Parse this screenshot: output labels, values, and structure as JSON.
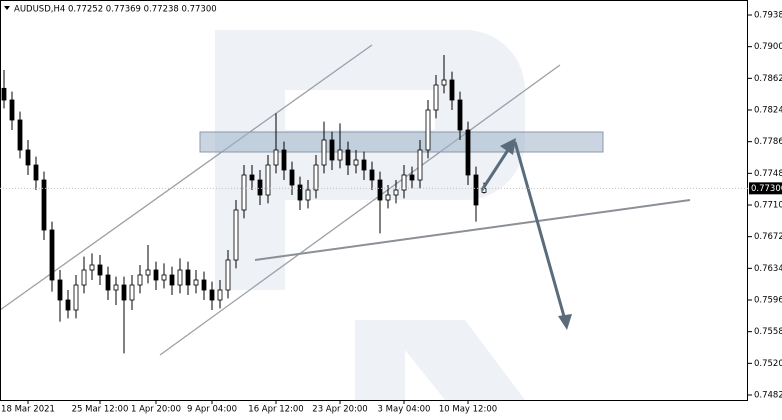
{
  "chart_data": {
    "type": "candlestick",
    "title": "AUDUSD,H4  0.77252 0.77369 0.77238 0.77300",
    "x": [
      0,
      1,
      2,
      3,
      4,
      5,
      6,
      7,
      8,
      9,
      10,
      11,
      12,
      13,
      14,
      15,
      16,
      17,
      18,
      19,
      20,
      21,
      22,
      23,
      24,
      25,
      26,
      27,
      28,
      29,
      30,
      31,
      32,
      33,
      34,
      35,
      36,
      37,
      38,
      39,
      40,
      41,
      42,
      43,
      44,
      45,
      46,
      47,
      48,
      49,
      50,
      51,
      52,
      53,
      54,
      55,
      56,
      57,
      58,
      59,
      60
    ],
    "open": [
      0.785,
      0.7836,
      0.7812,
      0.7776,
      0.7758,
      0.774,
      0.768,
      0.762,
      0.7596,
      0.7584,
      0.7614,
      0.7632,
      0.7638,
      0.7626,
      0.7608,
      0.7614,
      0.7596,
      0.7614,
      0.7626,
      0.7632,
      0.762,
      0.7626,
      0.7614,
      0.7632,
      0.7614,
      0.762,
      0.7608,
      0.7596,
      0.7608,
      0.7644,
      0.7704,
      0.7746,
      0.774,
      0.7722,
      0.7758,
      0.7776,
      0.7752,
      0.7734,
      0.7716,
      0.7728,
      0.7758,
      0.7788,
      0.7764,
      0.7776,
      0.7758,
      0.7764,
      0.7752,
      0.774,
      0.7716,
      0.7722,
      0.7728,
      0.7746,
      0.774,
      0.7776,
      0.7824,
      0.7854,
      0.786,
      0.7836,
      0.78,
      0.7746,
      0.77252
    ],
    "high": [
      0.7872,
      0.7846,
      0.7822,
      0.7788,
      0.7768,
      0.775,
      0.769,
      0.7632,
      0.7608,
      0.7626,
      0.7648,
      0.7652,
      0.765,
      0.7636,
      0.7624,
      0.7624,
      0.7626,
      0.7638,
      0.7662,
      0.7642,
      0.764,
      0.7636,
      0.7646,
      0.7642,
      0.7632,
      0.763,
      0.7618,
      0.762,
      0.7656,
      0.7716,
      0.7758,
      0.7758,
      0.7752,
      0.777,
      0.782,
      0.7786,
      0.7762,
      0.7744,
      0.774,
      0.777,
      0.781,
      0.7798,
      0.7808,
      0.7786,
      0.7776,
      0.7774,
      0.7762,
      0.775,
      0.7734,
      0.774,
      0.7758,
      0.7756,
      0.7788,
      0.7836,
      0.7866,
      0.789,
      0.787,
      0.7846,
      0.781,
      0.7756,
      0.77369
    ],
    "low": [
      0.7826,
      0.78,
      0.7766,
      0.7746,
      0.7728,
      0.7668,
      0.7606,
      0.757,
      0.7574,
      0.7574,
      0.7604,
      0.762,
      0.7614,
      0.7596,
      0.759,
      0.7532,
      0.7584,
      0.7604,
      0.7616,
      0.7608,
      0.761,
      0.7602,
      0.7604,
      0.7602,
      0.7604,
      0.7596,
      0.7584,
      0.7586,
      0.7598,
      0.7634,
      0.7694,
      0.7728,
      0.771,
      0.7712,
      0.7748,
      0.774,
      0.7722,
      0.7704,
      0.7706,
      0.7718,
      0.7748,
      0.7752,
      0.7754,
      0.7746,
      0.7748,
      0.774,
      0.7728,
      0.7676,
      0.7706,
      0.7712,
      0.7718,
      0.773,
      0.773,
      0.7766,
      0.7814,
      0.7844,
      0.7824,
      0.7788,
      0.7734,
      0.769,
      0.77238
    ],
    "close": [
      0.7836,
      0.7812,
      0.7776,
      0.7758,
      0.774,
      0.768,
      0.762,
      0.7596,
      0.7584,
      0.7614,
      0.7632,
      0.7638,
      0.7626,
      0.7608,
      0.7614,
      0.7596,
      0.7614,
      0.7626,
      0.7632,
      0.762,
      0.7626,
      0.7614,
      0.7632,
      0.7614,
      0.762,
      0.7608,
      0.7596,
      0.7608,
      0.7644,
      0.7704,
      0.7746,
      0.774,
      0.7722,
      0.7758,
      0.7776,
      0.7752,
      0.7734,
      0.7716,
      0.7728,
      0.7758,
      0.7788,
      0.7764,
      0.7776,
      0.7758,
      0.7764,
      0.7752,
      0.774,
      0.7716,
      0.7722,
      0.7728,
      0.7746,
      0.774,
      0.7776,
      0.7824,
      0.7854,
      0.786,
      0.7836,
      0.78,
      0.7746,
      0.771,
      0.773
    ],
    "xlim": [
      -0.5,
      93
    ],
    "xticks": [
      {
        "value": 3,
        "label": "18 Mar 2021"
      },
      {
        "value": 12,
        "label": "25 Mar 12:00"
      },
      {
        "value": 19,
        "label": "1 Apr 20:00"
      },
      {
        "value": 26,
        "label": "9 Apr 04:00"
      },
      {
        "value": 34,
        "label": "16 Apr 12:00"
      },
      {
        "value": 42,
        "label": "23 Apr 20:00"
      },
      {
        "value": 50,
        "label": "3 May 04:00"
      },
      {
        "value": 58,
        "label": "10 May 12:00"
      }
    ],
    "ylim": [
      0.7476,
      0.7956
    ],
    "yticks": [
      {
        "value": 0.7938,
        "label": "0.79380"
      },
      {
        "value": 0.79,
        "label": "0.79000"
      },
      {
        "value": 0.7862,
        "label": "0.78620"
      },
      {
        "value": 0.7824,
        "label": "0.78240"
      },
      {
        "value": 0.7786,
        "label": "0.77860"
      },
      {
        "value": 0.7748,
        "label": "0.77480"
      },
      {
        "value": 0.771,
        "label": "0.77100"
      },
      {
        "value": 0.7672,
        "label": "0.76720"
      },
      {
        "value": 0.7634,
        "label": "0.76340"
      },
      {
        "value": 0.7596,
        "label": "0.75960"
      },
      {
        "value": 0.7558,
        "label": "0.75580"
      },
      {
        "value": 0.752,
        "label": "0.75200"
      },
      {
        "value": 0.7482,
        "label": "0.74820"
      }
    ],
    "last_price": {
      "value": 0.773,
      "label": "0.77300"
    },
    "up_color": "#ffffff",
    "down_color": "#000000",
    "edge_color": "#000000"
  }
}
